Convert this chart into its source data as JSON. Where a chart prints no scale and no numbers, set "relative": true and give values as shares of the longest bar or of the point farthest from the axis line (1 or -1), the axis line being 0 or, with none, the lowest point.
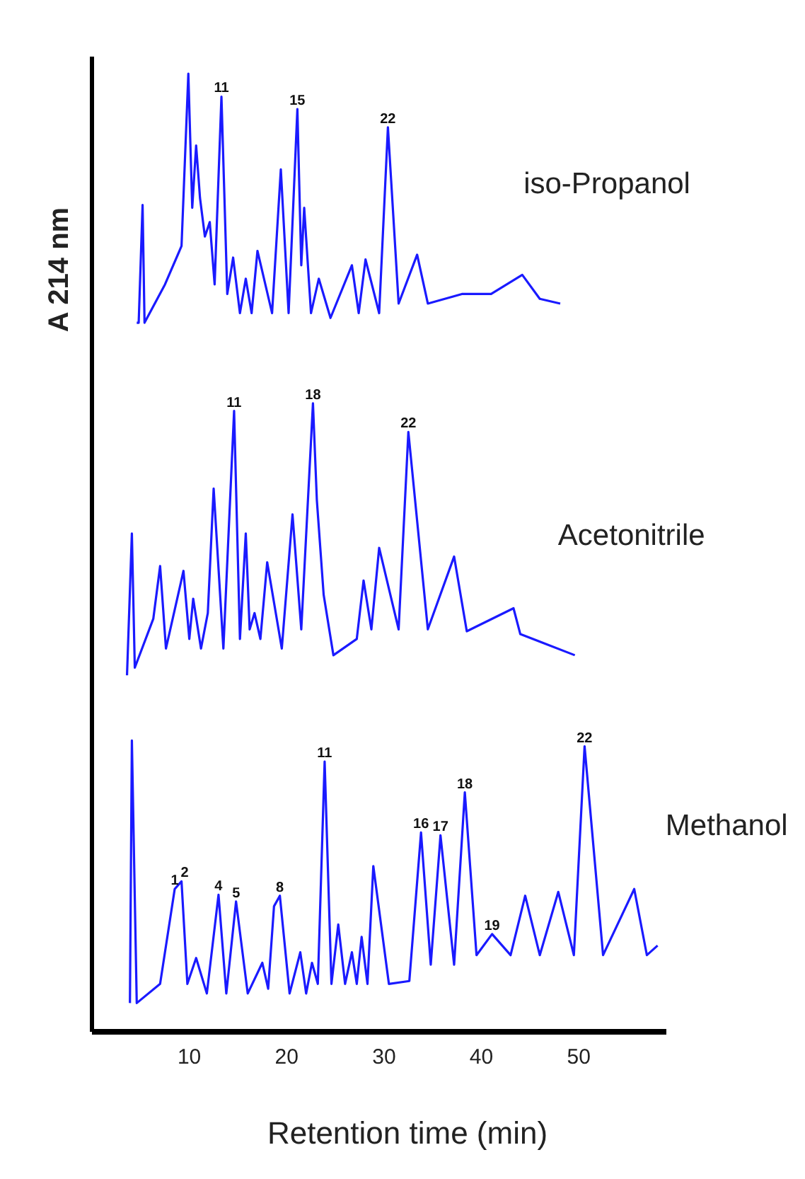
{
  "chart_data": {
    "type": "line",
    "xlabel": "Retention time (min)",
    "ylabel": "A 214 nm",
    "relative": true,
    "xlim": [
      0,
      59
    ],
    "xticks": [
      10,
      20,
      30,
      40,
      50
    ],
    "grid": false,
    "series": [
      {
        "name": "iso-Propanol",
        "color": "#1a1aff",
        "x": [
          4.6,
          4.8,
          5.2,
          5.4,
          7.5,
          9.2,
          9.9,
          10.3,
          10.7,
          11.1,
          11.6,
          12.1,
          12.6,
          13.3,
          13.9,
          14.5,
          15.2,
          15.8,
          16.4,
          17.0,
          18.5,
          19.4,
          20.2,
          21.1,
          21.5,
          21.8,
          22.5,
          23.3,
          24.5,
          26.7,
          27.4,
          28.1,
          29.5,
          30.4,
          31.5,
          33.4,
          34.5,
          38,
          41,
          44.2,
          46,
          48.1
        ],
        "values": [
          0.74,
          0.74,
          0.863,
          0.74,
          0.78,
          0.82,
          1.0,
          0.86,
          0.925,
          0.87,
          0.83,
          0.845,
          0.78,
          0.976,
          0.77,
          0.808,
          0.75,
          0.786,
          0.75,
          0.815,
          0.75,
          0.9,
          0.75,
          0.963,
          0.8,
          0.86,
          0.75,
          0.786,
          0.745,
          0.8,
          0.75,
          0.806,
          0.75,
          0.944,
          0.76,
          0.811,
          0.76,
          0.77,
          0.77,
          0.79,
          0.765,
          0.76
        ]
      },
      {
        "name": "Acetonitrile",
        "color": "#1a1aff",
        "x": [
          3.6,
          4.1,
          4.4,
          6.3,
          7.0,
          7.6,
          9.4,
          10.0,
          10.4,
          11.2,
          11.9,
          12.5,
          13.5,
          14.6,
          15.2,
          15.8,
          16.2,
          16.7,
          17.3,
          18.0,
          19.5,
          20.6,
          21.5,
          22.7,
          23.1,
          23.8,
          24.8,
          27.2,
          27.9,
          28.7,
          29.5,
          31.5,
          32.5,
          34.5,
          37.2,
          38.5,
          43.3,
          44,
          49.6
        ],
        "values": [
          0.372,
          0.52,
          0.38,
          0.431,
          0.486,
          0.4,
          0.481,
          0.41,
          0.452,
          0.4,
          0.437,
          0.567,
          0.4,
          0.648,
          0.41,
          0.52,
          0.42,
          0.437,
          0.41,
          0.49,
          0.4,
          0.54,
          0.42,
          0.656,
          0.555,
          0.456,
          0.393,
          0.41,
          0.471,
          0.42,
          0.505,
          0.42,
          0.626,
          0.42,
          0.496,
          0.418,
          0.442,
          0.415,
          0.393
        ]
      },
      {
        "name": "Methanol",
        "color": "#1a1aff",
        "x": [
          3.9,
          4.1,
          4.6,
          7.0,
          8.5,
          9.2,
          9.8,
          10.7,
          11.8,
          13.0,
          13.8,
          14.8,
          16.0,
          17.5,
          18.1,
          18.7,
          19.3,
          20.3,
          21.4,
          22.0,
          22.6,
          23.2,
          23.9,
          24.6,
          25.3,
          26.0,
          26.7,
          27.2,
          27.7,
          28.3,
          28.9,
          30.5,
          32.6,
          33.8,
          34.8,
          35.8,
          37.2,
          38.3,
          39.5,
          41.1,
          43.0,
          44.5,
          46.0,
          47.9,
          49.5,
          50.6,
          52.5,
          55.7,
          57,
          58.1
        ],
        "values": [
          0.03,
          0.304,
          0.03,
          0.05,
          0.149,
          0.157,
          0.05,
          0.077,
          0.04,
          0.143,
          0.04,
          0.136,
          0.04,
          0.072,
          0.045,
          0.131,
          0.142,
          0.04,
          0.083,
          0.04,
          0.072,
          0.05,
          0.282,
          0.05,
          0.112,
          0.05,
          0.083,
          0.05,
          0.099,
          0.05,
          0.173,
          0.05,
          0.053,
          0.208,
          0.07,
          0.205,
          0.07,
          0.25,
          0.08,
          0.102,
          0.08,
          0.142,
          0.08,
          0.146,
          0.08,
          0.298,
          0.08,
          0.149,
          0.08,
          0.09
        ]
      }
    ],
    "annotations": [
      {
        "text": "11",
        "x": 13.3,
        "y": 0.976
      },
      {
        "text": "22",
        "x": 30.4,
        "y": 0.944
      },
      {
        "text": "15",
        "x": 21.1,
        "y": 0.963
      },
      {
        "text": "11",
        "x": 14.6,
        "y": 0.648
      },
      {
        "text": "22",
        "x": 32.5,
        "y": 0.626
      },
      {
        "text": "18",
        "x": 22.7,
        "y": 0.656
      },
      {
        "text": "11",
        "x": 23.9,
        "y": 0.282
      },
      {
        "text": "22",
        "x": 50.6,
        "y": 0.298
      },
      {
        "text": "1",
        "x": 8.5,
        "y": 0.149
      },
      {
        "text": "2",
        "x": 9.2,
        "y": 0.157
      },
      {
        "text": "4",
        "x": 13.0,
        "y": 0.143
      },
      {
        "text": "5",
        "x": 14.8,
        "y": 0.136
      },
      {
        "text": "8",
        "x": 19.3,
        "y": 0.142
      },
      {
        "text": "16",
        "x": 33.8,
        "y": 0.208
      },
      {
        "text": "17",
        "x": 35.8,
        "y": 0.205
      },
      {
        "text": "18",
        "x": 38.3,
        "y": 0.25
      },
      {
        "text": "19",
        "x": 41.1,
        "y": 0.102
      }
    ]
  }
}
